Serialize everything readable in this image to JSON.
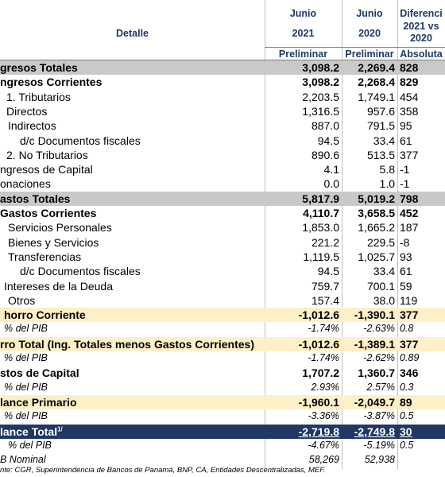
{
  "header": {
    "detail": "Detalle",
    "columns": [
      {
        "lines": [
          "Junio",
          "2021"
        ],
        "sub": "Preliminar"
      },
      {
        "lines": [
          "Junio",
          "2020"
        ],
        "sub": "Preliminar"
      },
      {
        "lines": [
          "Diferenci",
          "2021 vs",
          "2020"
        ],
        "sub": "Absoluta"
      }
    ]
  },
  "table": {
    "rows": [
      [
        "gresos Totales",
        "3,098.2",
        "2,269.4",
        "828"
      ],
      [
        "ngresos Corrientes",
        "3,098.2",
        "2,268.4",
        "829"
      ],
      [
        "1. Tributarios",
        "2,203.5",
        "1,749.1",
        "454"
      ],
      [
        "Directos",
        "1,316.5",
        "957.6",
        "358"
      ],
      [
        "Indirectos",
        "887.0",
        "791.5",
        "95"
      ],
      [
        "d/c Documentos fiscales",
        "94.5",
        "33.4",
        "61"
      ],
      [
        "2. No Tributarios",
        "890.6",
        "513.5",
        "377"
      ],
      [
        "ngresos de Capital",
        "4.1",
        "5.8",
        "-1"
      ],
      [
        "onaciones",
        "0.0",
        "1.0",
        "-1"
      ],
      [
        "astos Totales",
        "5,817.9",
        "5,019.2",
        "798"
      ],
      [
        "Gastos Corrientes",
        "4,110.7",
        "3,658.5",
        "452"
      ],
      [
        "Servicios Personales",
        "1,853.0",
        "1,665.2",
        "187"
      ],
      [
        "Bienes y Servicios",
        "221.2",
        "229.5",
        "-8"
      ],
      [
        "Transferencias",
        "1,119.5",
        "1,025.7",
        "93"
      ],
      [
        "d/c Documentos fiscales",
        "94.5",
        "33.4",
        "61"
      ],
      [
        "Intereses de la Deuda",
        "759.7",
        "700.1",
        "59"
      ],
      [
        "Otros",
        "157.4",
        "38.0",
        "119"
      ],
      [
        "horro Corriente",
        "-1,012.6",
        "-1,390.1",
        "377"
      ],
      [
        "% del PIB",
        "-1.74%",
        "-2.63%",
        "0.8"
      ],
      [
        "rro Total (Ing. Totales menos Gastos Corrientes)",
        "-1,012.6",
        "-1,389.1",
        "377"
      ],
      [
        "% del PIB",
        "-1.74%",
        "-2.62%",
        "0.89"
      ],
      [
        "stos de Capital",
        "1,707.2",
        "1,360.7",
        "346"
      ],
      [
        "% del PIB",
        "2.93%",
        "2.57%",
        "0.3"
      ],
      [
        "lance Primario",
        "-1,960.1",
        "-2,049.7",
        "89"
      ],
      [
        "% del PIB",
        "-3.36%",
        "-3.87%",
        "0.5"
      ],
      [
        "lance Total",
        "-2,719.8",
        "-2,749.8",
        "30"
      ],
      [
        "% del PIB",
        "-4.67%",
        "-5.19%",
        "0.5"
      ],
      [
        "B Nominal",
        "58,269",
        "52,938",
        null
      ]
    ],
    "note_mark": "1/"
  },
  "footnote": "nte: CGR, Superintendencia de Bancos de Panamá, BNP, CA, Entidades Descentralizadas, MEF."
}
